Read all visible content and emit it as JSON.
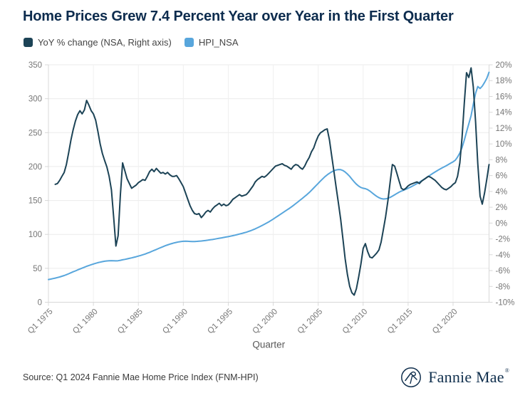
{
  "header": {
    "title": "Home Prices Grew 7.4 Percent Year over Year in the First Quarter"
  },
  "footer": {
    "source": "Source: Q1 2024 Fannie Mae Home Price Index (FNM-HPI)",
    "logo_text": "Fannie Mae",
    "logo_registered_mark": "®"
  },
  "colors": {
    "title": "#0D2C4E",
    "grid": "#EBEBEB",
    "vertical_grid": "#F0F0F0",
    "axis_line": "#D8D8D8",
    "axis_text": "#767676",
    "xlabel_text": "#595959",
    "source_text": "#3A3A3A",
    "logo_navy": "#11304E",
    "yoy_line": "#1C4356",
    "hpi_line": "#58A6DC"
  },
  "chart_data": {
    "type": "line",
    "title": "Home Prices Grew 7.4 Percent Year over Year in the First Quarter",
    "xlabel": "Quarter",
    "x_unit": "quarters since Q1 1975",
    "x_start": "Q1 1975",
    "x_end": "Q1 2024",
    "x_total_quarters": 197,
    "x_tick_labels": [
      "Q1 1975",
      "Q1 1980",
      "Q1 1985",
      "Q1 1990",
      "Q1 1995",
      "Q1 2000",
      "Q1 2005",
      "Q1 2010",
      "Q1 2015",
      "Q1 2020"
    ],
    "x_tick_quarter_indices": [
      0,
      20,
      40,
      60,
      80,
      100,
      120,
      140,
      160,
      180
    ],
    "left_axis": {
      "series": "HPI_NSA",
      "min": 0,
      "max": 350,
      "step": 50
    },
    "right_axis": {
      "series": "YoY % change (NSA)",
      "min": -10,
      "max": 20,
      "step": 2,
      "format": "percent"
    },
    "grid": true,
    "legend_position": "top-left",
    "series": [
      {
        "name": "YoY % change (NSA, Right axis)",
        "axis": "right",
        "color": "#1C4356",
        "start_quarter_index": 3,
        "start_label": "Q4 1975",
        "values": [
          4.9,
          5.0,
          5.4,
          5.9,
          6.4,
          7.4,
          8.9,
          10.5,
          11.8,
          12.9,
          13.7,
          14.2,
          13.8,
          14.3,
          15.5,
          14.9,
          14.2,
          13.8,
          13.0,
          11.6,
          10.0,
          8.8,
          7.9,
          7.1,
          5.9,
          4.2,
          0.8,
          -2.9,
          -1.6,
          3.6,
          7.6,
          6.6,
          5.6,
          5.0,
          4.4,
          4.6,
          4.8,
          5.1,
          5.3,
          5.5,
          5.4,
          5.9,
          6.5,
          6.8,
          6.5,
          6.9,
          6.6,
          6.3,
          6.4,
          6.2,
          6.4,
          6.1,
          5.9,
          5.9,
          6.0,
          5.6,
          5.1,
          4.6,
          3.8,
          3.0,
          2.2,
          1.6,
          1.2,
          1.1,
          1.2,
          0.7,
          1.0,
          1.4,
          1.6,
          1.4,
          1.8,
          2.1,
          2.3,
          2.5,
          2.2,
          2.4,
          2.2,
          2.3,
          2.6,
          3.0,
          3.2,
          3.4,
          3.6,
          3.4,
          3.5,
          3.6,
          3.9,
          4.3,
          4.7,
          5.2,
          5.5,
          5.7,
          5.9,
          5.8,
          6.0,
          6.3,
          6.6,
          6.9,
          7.2,
          7.3,
          7.4,
          7.5,
          7.3,
          7.2,
          7.0,
          6.8,
          7.2,
          7.4,
          7.3,
          7.0,
          6.8,
          7.2,
          7.8,
          8.3,
          9.0,
          9.5,
          10.3,
          11.0,
          11.4,
          11.6,
          11.8,
          11.9,
          10.5,
          8.5,
          6.5,
          4.5,
          2.5,
          0.5,
          -2.0,
          -4.5,
          -6.5,
          -8.0,
          -8.8,
          -9.1,
          -8.3,
          -6.8,
          -5.2,
          -3.2,
          -2.6,
          -3.6,
          -4.3,
          -4.4,
          -4.1,
          -3.8,
          -3.4,
          -2.4,
          -0.8,
          0.8,
          2.8,
          5.2,
          7.4,
          7.2,
          6.3,
          5.3,
          4.4,
          4.2,
          4.4,
          4.7,
          4.9,
          5.0,
          5.1,
          5.2,
          5.0,
          5.3,
          5.5,
          5.7,
          5.9,
          5.8,
          5.6,
          5.4,
          5.1,
          4.8,
          4.5,
          4.3,
          4.2,
          4.4,
          4.6,
          4.9,
          5.1,
          5.9,
          7.6,
          10.8,
          15.2,
          19.0,
          18.4,
          19.6,
          17.2,
          12.8,
          7.5,
          3.4,
          2.4,
          3.8,
          5.5,
          7.4
        ]
      },
      {
        "name": "HPI_NSA",
        "axis": "left",
        "color": "#58A6DC",
        "start_quarter_index": 0,
        "start_label": "Q1 1975",
        "values": [
          33.5,
          34.1,
          34.8,
          35.6,
          36.4,
          37.3,
          38.3,
          39.4,
          40.6,
          42.0,
          43.5,
          44.9,
          46.2,
          47.6,
          49.0,
          50.3,
          51.6,
          53.0,
          54.2,
          55.3,
          56.4,
          57.4,
          58.3,
          59.1,
          59.8,
          60.4,
          60.9,
          61.2,
          61.3,
          61.2,
          61.0,
          61.2,
          61.8,
          62.5,
          63.2,
          63.9,
          64.6,
          65.4,
          66.2,
          67.1,
          68.0,
          69.0,
          70.0,
          71.1,
          72.3,
          73.6,
          75.0,
          76.4,
          77.8,
          79.2,
          80.6,
          82.0,
          83.3,
          84.5,
          85.6,
          86.6,
          87.5,
          88.3,
          89.0,
          89.5,
          89.8,
          89.9,
          89.8,
          89.6,
          89.4,
          89.5,
          89.7,
          90.0,
          90.3,
          90.7,
          91.1,
          91.5,
          92.0,
          92.5,
          93.1,
          93.7,
          94.3,
          94.9,
          95.5,
          96.1,
          96.7,
          97.4,
          98.1,
          98.9,
          99.7,
          100.5,
          101.4,
          102.3,
          103.2,
          104.3,
          105.5,
          106.8,
          108.2,
          109.8,
          111.4,
          113.1,
          114.8,
          116.6,
          118.5,
          120.5,
          122.6,
          124.8,
          127.0,
          129.2,
          131.4,
          133.6,
          135.8,
          138.0,
          140.3,
          142.8,
          145.4,
          148.0,
          150.6,
          153.2,
          155.9,
          158.7,
          161.7,
          165.0,
          168.4,
          171.8,
          175.2,
          178.6,
          181.9,
          185.0,
          187.8,
          190.2,
          192.2,
          193.8,
          195.0,
          195.6,
          195.4,
          194.2,
          192.0,
          189.0,
          185.5,
          181.5,
          177.5,
          174.0,
          171.2,
          169.2,
          168.0,
          167.4,
          166.0,
          163.8,
          161.2,
          158.6,
          156.2,
          154.2,
          152.8,
          152.2,
          152.4,
          153.2,
          154.6,
          156.4,
          158.4,
          160.4,
          162.2,
          163.8,
          165.2,
          166.6,
          168.0,
          169.6,
          171.4,
          173.2,
          175.0,
          176.9,
          178.9,
          181.0,
          183.2,
          185.5,
          187.8,
          190.0,
          192.1,
          194.1,
          196.0,
          197.8,
          199.5,
          201.3,
          203.2,
          205.2,
          207.0,
          209.5,
          214.0,
          220.0,
          228.0,
          239.0,
          251.0,
          263.0,
          275.0,
          292.0,
          308.0,
          318.0,
          315.0,
          318.5,
          324.0,
          330.0,
          339.0
        ]
      }
    ]
  }
}
